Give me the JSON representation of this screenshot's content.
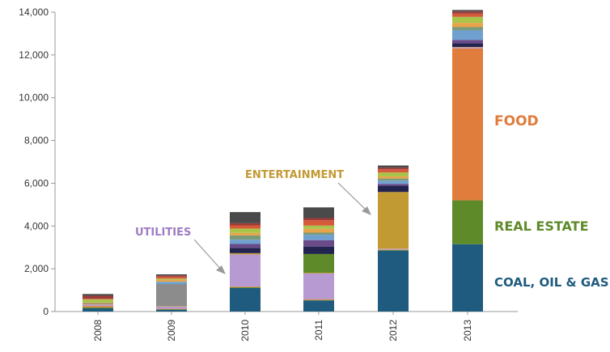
{
  "chart_data": {
    "type": "bar",
    "stacked": true,
    "title": "",
    "xlabel": "",
    "ylabel": "",
    "ylim": [
      0,
      14000
    ],
    "yticks": [
      0,
      2000,
      4000,
      6000,
      8000,
      10000,
      12000,
      14000
    ],
    "ytick_labels": [
      "0",
      "2,000",
      "4,000",
      "6,000",
      "8,000",
      "10,000",
      "12,000",
      "14,000"
    ],
    "grid": false,
    "legend": "none",
    "categories": [
      "2008",
      "2009",
      "2010",
      "2011",
      "2012",
      "2013"
    ],
    "series": [
      {
        "name": "COAL, OIL & GAS",
        "color": "#1f5b7e",
        "values": [
          150,
          80,
          1100,
          520,
          2850,
          3150
        ]
      },
      {
        "name": "REAL ESTATE",
        "color": "#5e8a2a",
        "values": [
          50,
          30,
          40,
          20,
          30,
          2050
        ]
      },
      {
        "name": "FOOD",
        "color": "#e07c3c",
        "values": [
          60,
          20,
          30,
          40,
          20,
          7100
        ]
      },
      {
        "name": "UTILITIES",
        "color": "#b79ad2",
        "values": [
          70,
          100,
          1500,
          1200,
          40,
          50
        ]
      },
      {
        "name": "ENTERTAINMENT",
        "color": "#c29a33",
        "values": [
          30,
          20,
          60,
          30,
          2650,
          20
        ]
      },
      {
        "values": [
          0,
          0,
          0,
          880,
          0,
          0
        ],
        "color": "#5e8a2a"
      },
      {
        "values": [
          40,
          1050,
          0,
          0,
          0,
          0
        ],
        "color": "#8c8c8c"
      },
      {
        "values": [
          0,
          90,
          0,
          0,
          0,
          0
        ],
        "color": "#5aa0d8"
      },
      {
        "values": [
          0,
          0,
          250,
          350,
          300,
          180
        ],
        "color": "#23234f"
      },
      {
        "values": [
          0,
          0,
          180,
          300,
          80,
          150
        ],
        "color": "#6b4a8a"
      },
      {
        "values": [
          0,
          0,
          200,
          250,
          150,
          450
        ],
        "color": "#6fa0d0"
      },
      {
        "values": [
          0,
          0,
          200,
          100,
          100,
          150
        ],
        "color": "#7a9a7a"
      },
      {
        "values": [
          20,
          100,
          120,
          180,
          100,
          200
        ],
        "color": "#e8a44a"
      },
      {
        "values": [
          150,
          50,
          200,
          150,
          180,
          280
        ],
        "color": "#a8c44a"
      },
      {
        "values": [
          30,
          90,
          150,
          250,
          150,
          150
        ],
        "color": "#d45a3a"
      },
      {
        "values": [
          140,
          50,
          100,
          100,
          80,
          100
        ],
        "color": "#9c3a3a"
      },
      {
        "values": [
          80,
          60,
          520,
          500,
          100,
          70
        ],
        "color": "#4a4a4a"
      }
    ],
    "annotations": [
      {
        "text": "FOOD",
        "color": "#e07c3c"
      },
      {
        "text": "REAL ESTATE",
        "color": "#5e8a2a"
      },
      {
        "text": "COAL, OIL & GAS",
        "color": "#1f5b7e"
      },
      {
        "text": "UTILITIES",
        "color": "#a07cc4"
      },
      {
        "text": "ENTERTAINMENT",
        "color": "#c29a33"
      }
    ]
  }
}
